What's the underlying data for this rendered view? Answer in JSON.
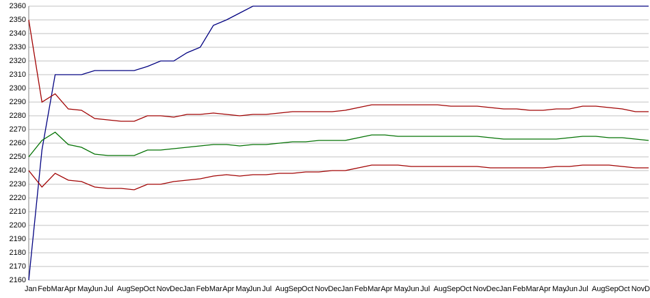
{
  "chart_data": {
    "type": "line",
    "categories": [
      "Jan",
      "Feb",
      "Mar",
      "Apr",
      "May",
      "Jun",
      "Jul",
      "Aug",
      "Sep",
      "Oct",
      "Nov",
      "Dec",
      "Jan",
      "Feb",
      "Mar",
      "Apr",
      "May",
      "Jun",
      "Jul",
      "Aug",
      "Sep",
      "Oct",
      "Nov",
      "Dec",
      "Jan",
      "Feb",
      "Mar",
      "Apr",
      "May",
      "Jun",
      "Jul",
      "Aug",
      "Sep",
      "Oct",
      "Nov",
      "Dec",
      "Jan",
      "Feb",
      "Mar",
      "Apr",
      "May",
      "Jun",
      "Jul",
      "Aug",
      "Sep",
      "Oct",
      "Nov",
      "Dec"
    ],
    "series": [
      {
        "color": "#000080",
        "values": [
          2160,
          2255,
          2310,
          2310,
          2310,
          2313,
          2313,
          2313,
          2313,
          2316,
          2320,
          2320,
          2326,
          2330,
          2346,
          2350,
          2355,
          2360,
          2360,
          2360,
          2360,
          2360,
          2360,
          2360,
          2360,
          2360,
          2360,
          2360,
          2360,
          2360,
          2360,
          2360,
          2360,
          2360,
          2360,
          2360,
          2360,
          2360,
          2360,
          2360,
          2360,
          2360,
          2360,
          2360,
          2360,
          2360,
          2360,
          2360
        ]
      },
      {
        "color": "#a00000",
        "values": [
          2350,
          2290,
          2296,
          2285,
          2284,
          2278,
          2277,
          2276,
          2276,
          2280,
          2280,
          2279,
          2281,
          2281,
          2282,
          2281,
          2280,
          2281,
          2281,
          2282,
          2283,
          2283,
          2283,
          2283,
          2284,
          2286,
          2288,
          2288,
          2288,
          2288,
          2288,
          2288,
          2287,
          2287,
          2287,
          2286,
          2285,
          2285,
          2284,
          2284,
          2285,
          2285,
          2287,
          2287,
          2286,
          2285,
          2283,
          2283
        ]
      },
      {
        "color": "#007000",
        "values": [
          2250,
          2262,
          2268,
          2259,
          2257,
          2252,
          2251,
          2251,
          2251,
          2255,
          2255,
          2256,
          2257,
          2258,
          2259,
          2259,
          2258,
          2259,
          2259,
          2260,
          2261,
          2261,
          2262,
          2262,
          2262,
          2264,
          2266,
          2266,
          2265,
          2265,
          2265,
          2265,
          2265,
          2265,
          2265,
          2264,
          2263,
          2263,
          2263,
          2263,
          2263,
          2264,
          2265,
          2265,
          2264,
          2264,
          2263,
          2262
        ]
      },
      {
        "color": "#a00000",
        "values": [
          2240,
          2228,
          2238,
          2233,
          2232,
          2228,
          2227,
          2227,
          2226,
          2230,
          2230,
          2232,
          2233,
          2234,
          2236,
          2237,
          2236,
          2237,
          2237,
          2238,
          2238,
          2239,
          2239,
          2240,
          2240,
          2242,
          2244,
          2244,
          2244,
          2243,
          2243,
          2243,
          2243,
          2243,
          2243,
          2242,
          2242,
          2242,
          2242,
          2242,
          2243,
          2243,
          2244,
          2244,
          2244,
          2243,
          2242,
          2242
        ]
      }
    ],
    "ylim": [
      2160,
      2360
    ],
    "yticks": [
      2160,
      2170,
      2180,
      2190,
      2200,
      2210,
      2220,
      2230,
      2240,
      2250,
      2260,
      2270,
      2280,
      2290,
      2300,
      2310,
      2320,
      2330,
      2340,
      2350,
      2360
    ],
    "grid": true
  }
}
